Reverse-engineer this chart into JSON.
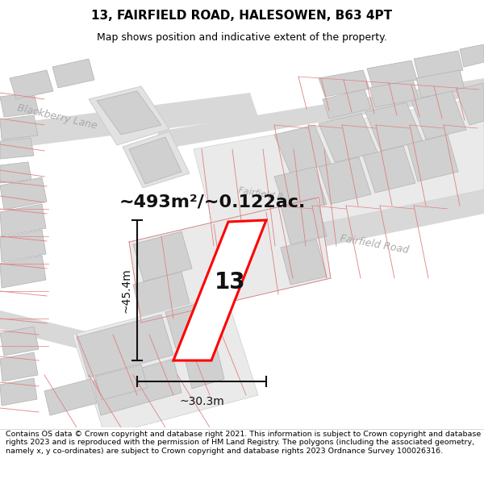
{
  "title_line1": "13, FAIRFIELD ROAD, HALESOWEN, B63 4PT",
  "title_line2": "Map shows position and indicative extent of the property.",
  "footer_text": "Contains OS data © Crown copyright and database right 2021. This information is subject to Crown copyright and database rights 2023 and is reproduced with the permission of HM Land Registry. The polygons (including the associated geometry, namely x, y co-ordinates) are subject to Crown copyright and database rights 2023 Ordnance Survey 100026316.",
  "area_label": "~493m²/~0.122ac.",
  "width_label": "~30.3m",
  "height_label": "~45.4m",
  "plot_number": "13",
  "map_bg": "#f7f7f7",
  "road_fill": "#d8d8d8",
  "building_fill": "#d0d0d0",
  "building_edge": "#b8b8b8",
  "lot_line_color": "#e08080",
  "property_color": "#ff0000",
  "dim_color": "#111111",
  "street_color": "#aaaaaa",
  "title_bg": "#ffffff",
  "footer_bg": "#ffffff",
  "title_fs": 11,
  "subtitle_fs": 9,
  "footer_fs": 6.8,
  "area_fs": 16,
  "dim_fs": 10,
  "plot_num_fs": 20,
  "street_fs": 9
}
